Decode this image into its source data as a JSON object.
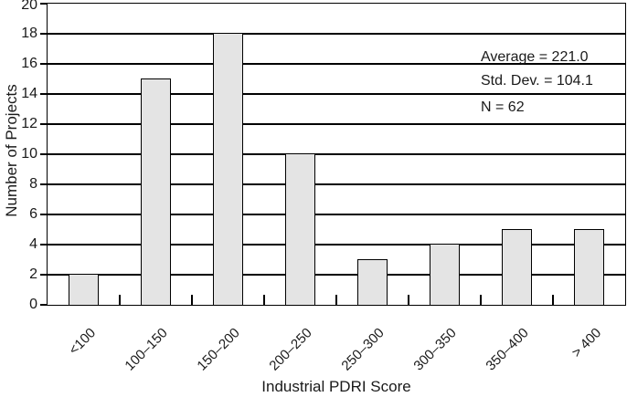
{
  "chart_data": {
    "type": "bar",
    "categories": [
      "<100",
      "100–150",
      "150–200",
      "200–250",
      "250–300",
      "300–350",
      "350–400",
      "> 400"
    ],
    "values": [
      2,
      15,
      18,
      10,
      3,
      4,
      5,
      5
    ],
    "title": "",
    "xlabel": "Industrial PDRI Score",
    "ylabel": "Number of Projects",
    "ylim": [
      0,
      20
    ],
    "yticks": [
      0,
      2,
      4,
      6,
      8,
      10,
      12,
      14,
      16,
      18,
      20
    ],
    "grid": "horizontal",
    "legend": "none",
    "bar_fill_color": "#e4e4e4",
    "bar_border_color": "#000000",
    "line_color": "#000000",
    "text_color": "#1a1a1a",
    "annotations": [
      "Average = 221.0",
      "Std. Dev. = 104.1",
      "N = 62"
    ]
  }
}
